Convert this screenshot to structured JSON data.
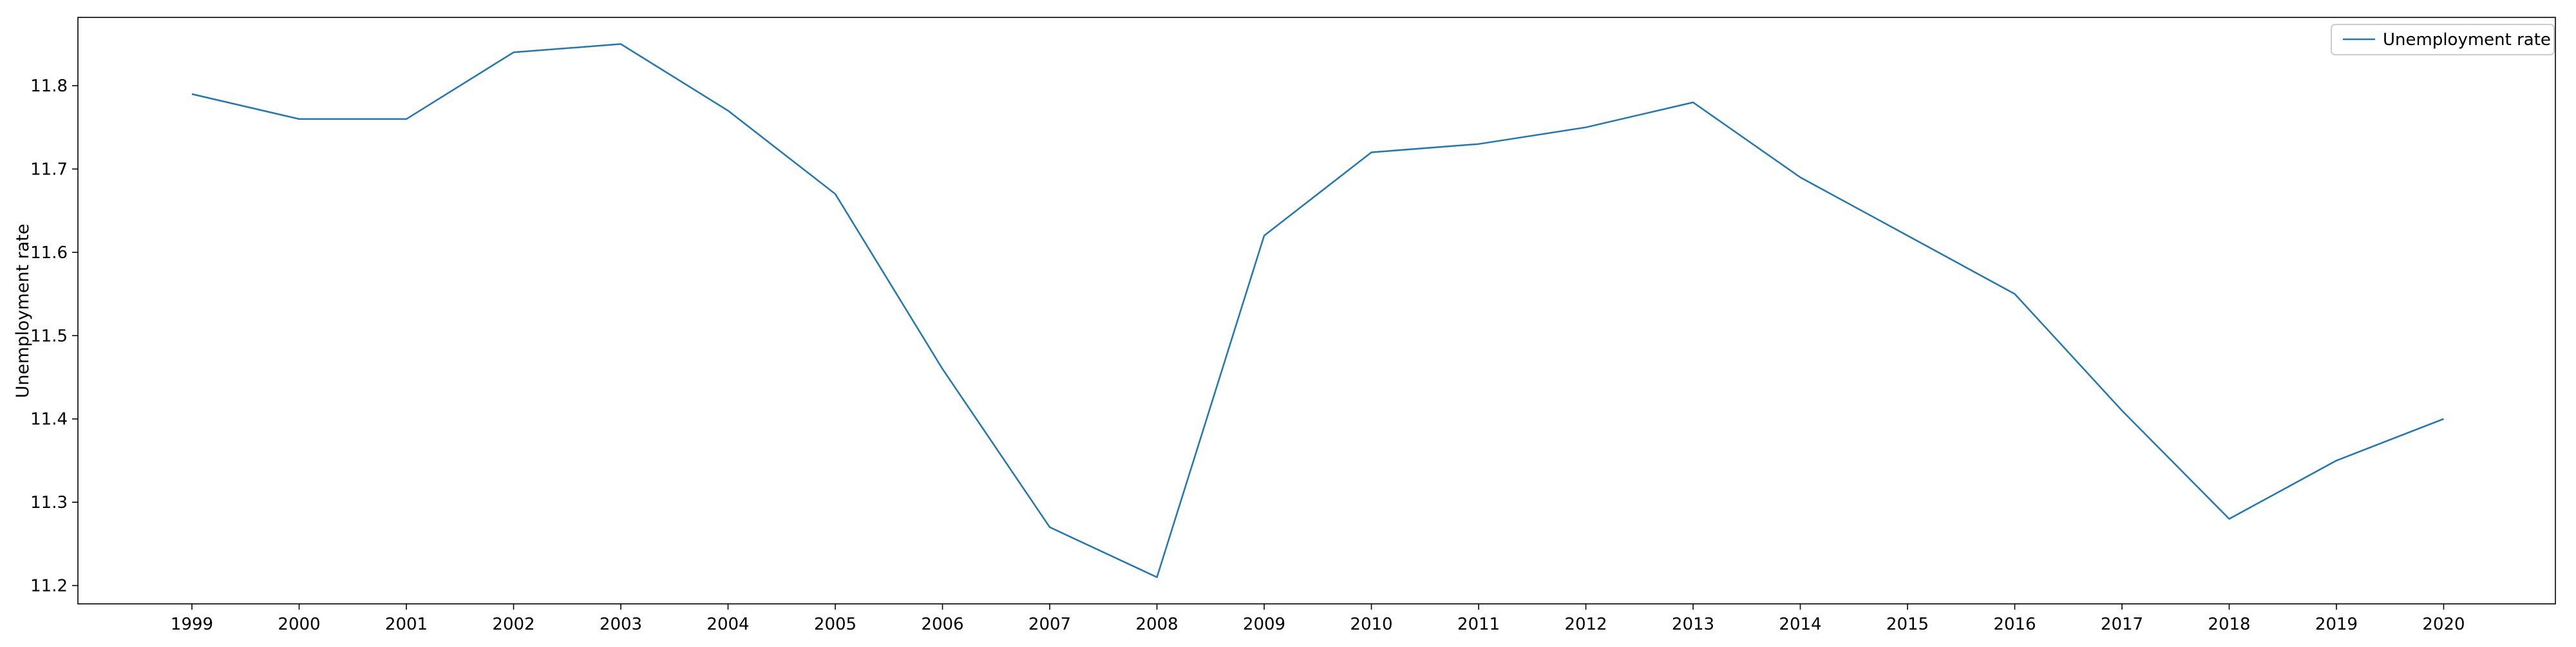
{
  "chart_data": {
    "type": "line",
    "title": "",
    "xlabel": "",
    "ylabel": "Unemployment rate",
    "categories": [
      "1999",
      "2000",
      "2001",
      "2002",
      "2003",
      "2004",
      "2005",
      "2006",
      "2007",
      "2008",
      "2009",
      "2010",
      "2011",
      "2012",
      "2013",
      "2014",
      "2015",
      "2016",
      "2017",
      "2018",
      "2019",
      "2020"
    ],
    "series": [
      {
        "name": "Unemployment rate",
        "color": "#1f77b4",
        "values": [
          11.79,
          11.76,
          11.76,
          11.84,
          11.85,
          11.77,
          11.67,
          11.46,
          11.27,
          11.21,
          11.62,
          11.72,
          11.73,
          11.75,
          11.78,
          11.69,
          11.62,
          11.55,
          11.41,
          11.28,
          11.35,
          11.4
        ]
      }
    ],
    "ylim": [
      11.178,
      11.882
    ],
    "yticks": [
      11.2,
      11.3,
      11.4,
      11.5,
      11.6,
      11.7,
      11.8
    ],
    "ytick_labels": [
      "11.2",
      "11.3",
      "11.4",
      "11.5",
      "11.6",
      "11.7",
      "11.8"
    ],
    "grid": false,
    "legend_position": "top-right"
  }
}
